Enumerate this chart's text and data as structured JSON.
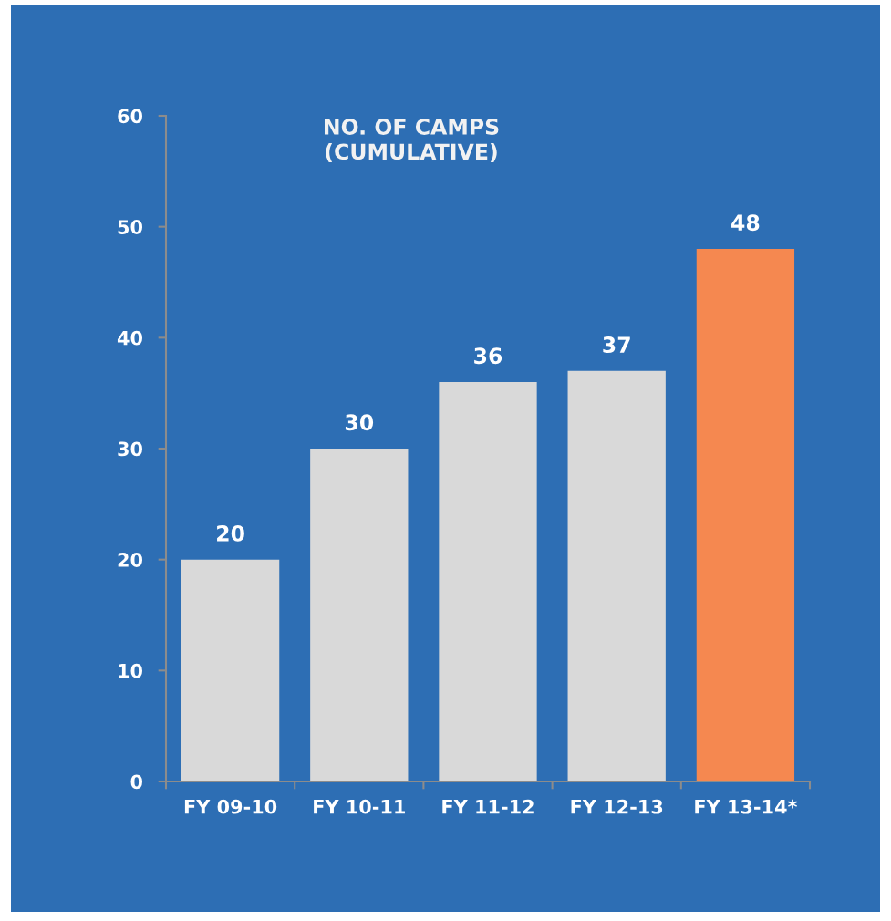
{
  "chart_data": {
    "type": "bar",
    "title": "NO. OF CAMPS\n(CUMULATIVE)",
    "categories": [
      "FY 09-10",
      "FY 10-11",
      "FY 11-12",
      "FY 12-13",
      "FY 13-14*"
    ],
    "values": [
      20,
      30,
      36,
      37,
      48
    ],
    "colors": [
      "#d9d9d9",
      "#d9d9d9",
      "#d9d9d9",
      "#d9d9d9",
      "#f58850"
    ],
    "ylim": [
      0,
      60
    ],
    "yticks": [
      0,
      10,
      20,
      30,
      40,
      50,
      60
    ],
    "data_labels": true,
    "grid": false,
    "legend": false
  }
}
